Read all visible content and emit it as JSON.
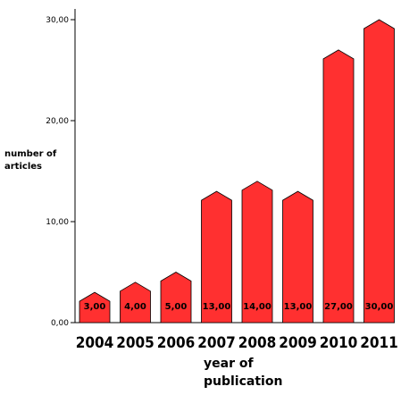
{
  "chart_data": {
    "type": "bar",
    "categories": [
      "2004",
      "2005",
      "2006",
      "2007",
      "2008",
      "2009",
      "2010",
      "2011"
    ],
    "values": [
      3,
      4,
      5,
      13,
      14,
      13,
      27,
      30
    ],
    "data_labels": [
      "3,00",
      "4,00",
      "5,00",
      "13,00",
      "14,00",
      "13,00",
      "27,00",
      "30,00"
    ],
    "y_ticks": [
      0,
      10,
      20,
      30
    ],
    "y_tick_labels": [
      "0,00",
      "10,00",
      "20,00",
      "30,00"
    ],
    "ylabel_lines": [
      "number of",
      "articles"
    ],
    "xlabel_lines": [
      "year of",
      "publication"
    ],
    "ylim": [
      0,
      30
    ],
    "grid": false,
    "bar_color": "#ff3030"
  }
}
